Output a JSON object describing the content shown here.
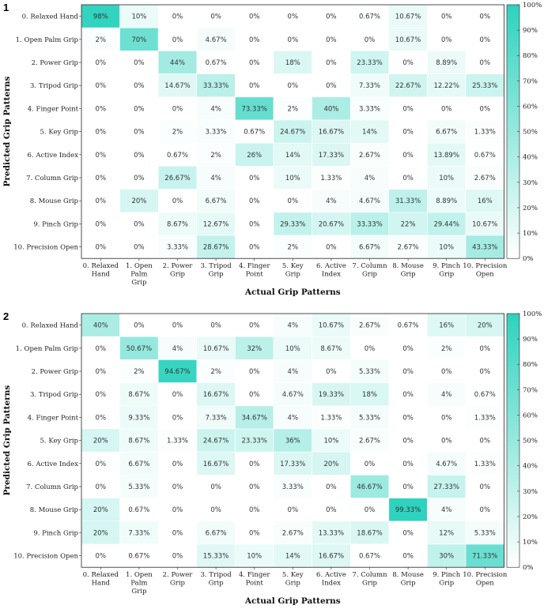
{
  "chart_data": [
    {
      "type": "heatmap",
      "panel_label": "1",
      "xlabel": "Actual Grip Patterns",
      "ylabel": "Predicted Grip Patterns",
      "row_labels": [
        "0. Relaxed Hand",
        "1. Open Palm Grip",
        "2. Power Grip",
        "3. Tripod Grip",
        "4. Finger Point",
        "5. Key Grip",
        "6. Active Index",
        "7. Column Grip",
        "8. Mouse Grip",
        "9. Pinch Grip",
        "10. Precision Open"
      ],
      "col_labels": [
        [
          "0. Relaxed",
          "Hand"
        ],
        [
          "1. Open",
          "Palm",
          "Grip"
        ],
        [
          "2. Power",
          "Grip"
        ],
        [
          "3. Tripod",
          "Grip"
        ],
        [
          "4. Finger",
          "Point"
        ],
        [
          "5. Key",
          "Grip"
        ],
        [
          "6. Active",
          "Index"
        ],
        [
          "7. Column",
          "Grip"
        ],
        [
          "8. Mouse",
          "Grip"
        ],
        [
          "9. Pinch",
          "Grip"
        ],
        [
          "10. Precision",
          "Open"
        ]
      ],
      "cell_labels": [
        [
          "98%",
          "10%",
          "0%",
          "0%",
          "0%",
          "0%",
          "0%",
          "0.67%",
          "10.67%",
          "0%",
          "0%"
        ],
        [
          "2%",
          "70%",
          "0%",
          "4.67%",
          "0%",
          "0%",
          "0%",
          "0%",
          "10.67%",
          "0%",
          "0%"
        ],
        [
          "0%",
          "0%",
          "44%",
          "0.67%",
          "0%",
          "18%",
          "0%",
          "23.33%",
          "0%",
          "8.89%",
          "0%"
        ],
        [
          "0%",
          "0%",
          "14.67%",
          "33.33%",
          "0%",
          "0%",
          "0%",
          "7.33%",
          "22.67%",
          "12.22%",
          "25.33%"
        ],
        [
          "0%",
          "0%",
          "0%",
          "4%",
          "73.33%",
          "2%",
          "40%",
          "3.33%",
          "0%",
          "0%",
          "0%"
        ],
        [
          "0%",
          "0%",
          "2%",
          "3.33%",
          "0.67%",
          "24.67%",
          "16.67%",
          "14%",
          "0%",
          "6.67%",
          "1.33%"
        ],
        [
          "0%",
          "0%",
          "0.67%",
          "2%",
          "26%",
          "14%",
          "17.33%",
          "2.67%",
          "0%",
          "13.89%",
          "0.67%"
        ],
        [
          "0%",
          "0%",
          "26.67%",
          "4%",
          "0%",
          "10%",
          "1.33%",
          "4%",
          "0%",
          "10%",
          "2.67%"
        ],
        [
          "0%",
          "20%",
          "0%",
          "6.67%",
          "0%",
          "0%",
          "4%",
          "4.67%",
          "31.33%",
          "8.89%",
          "16%"
        ],
        [
          "0%",
          "0%",
          "8.67%",
          "12.67%",
          "0%",
          "29.33%",
          "20.67%",
          "33.33%",
          "22%",
          "29.44%",
          "10.67%"
        ],
        [
          "0%",
          "0%",
          "3.33%",
          "28.67%",
          "0%",
          "2%",
          "0%",
          "6.67%",
          "2.67%",
          "10%",
          "43.33%"
        ]
      ],
      "values": [
        [
          98,
          10,
          0,
          0,
          0,
          0,
          0,
          0.67,
          10.67,
          0,
          0
        ],
        [
          2,
          70,
          0,
          4.67,
          0,
          0,
          0,
          0,
          10.67,
          0,
          0
        ],
        [
          0,
          0,
          44,
          0.67,
          0,
          18,
          0,
          23.33,
          0,
          8.89,
          0
        ],
        [
          0,
          0,
          14.67,
          33.33,
          0,
          0,
          0,
          7.33,
          22.67,
          12.22,
          25.33
        ],
        [
          0,
          0,
          0,
          4,
          73.33,
          2,
          40,
          3.33,
          0,
          0,
          0
        ],
        [
          0,
          0,
          2,
          3.33,
          0.67,
          24.67,
          16.67,
          14,
          0,
          6.67,
          1.33
        ],
        [
          0,
          0,
          0.67,
          2,
          26,
          14,
          17.33,
          2.67,
          0,
          13.89,
          0.67
        ],
        [
          0,
          0,
          26.67,
          4,
          0,
          10,
          1.33,
          4,
          0,
          10,
          2.67
        ],
        [
          0,
          20,
          0,
          6.67,
          0,
          0,
          4,
          4.67,
          31.33,
          8.89,
          16
        ],
        [
          0,
          0,
          8.67,
          12.67,
          0,
          29.33,
          20.67,
          33.33,
          22,
          29.44,
          10.67
        ],
        [
          0,
          0,
          3.33,
          28.67,
          0,
          2,
          0,
          6.67,
          2.67,
          10,
          43.33
        ]
      ],
      "colorbar_ticks": [
        "0%",
        "10%",
        "20%",
        "30%",
        "40%",
        "50%",
        "60%",
        "70%",
        "80%",
        "90%",
        "100%"
      ],
      "colorbar_range": [
        0,
        100
      ]
    },
    {
      "type": "heatmap",
      "panel_label": "2",
      "xlabel": "Actual Grip Patterns",
      "ylabel": "Predicted Grip Patterns",
      "row_labels": [
        "0. Relaxed Hand",
        "1. Open Palm Grip",
        "2. Power Grip",
        "3. Tripod Grip",
        "4. Finger Point",
        "5. Key Grip",
        "6. Active Index",
        "7. Column Grip",
        "8. Mouse Grip",
        "9. Pinch Grip",
        "10. Precision Open"
      ],
      "col_labels": [
        [
          "0. Relaxed",
          "Hand"
        ],
        [
          "1. Open",
          "Palm",
          "Grip"
        ],
        [
          "2. Power",
          "Grip"
        ],
        [
          "3. Tripod",
          "Grip"
        ],
        [
          "4. Finger",
          "Point"
        ],
        [
          "5. Key",
          "Grip"
        ],
        [
          "6. Active",
          "Index"
        ],
        [
          "7. Column",
          "Grip"
        ],
        [
          "8. Mouse",
          "Grip"
        ],
        [
          "9. Pinch",
          "Grip"
        ],
        [
          "10. Precision",
          "Open"
        ]
      ],
      "cell_labels": [
        [
          "40%",
          "0%",
          "0%",
          "0%",
          "0%",
          "4%",
          "10.67%",
          "2.67%",
          "0.67%",
          "16%",
          "20%"
        ],
        [
          "0%",
          "50.67%",
          "4%",
          "10.67%",
          "32%",
          "10%",
          "8.67%",
          "0%",
          "0%",
          "2%",
          "0%"
        ],
        [
          "0%",
          "2%",
          "94.67%",
          "2%",
          "0%",
          "4%",
          "0%",
          "5.33%",
          "0%",
          "0%",
          "0%"
        ],
        [
          "0%",
          "8.67%",
          "0%",
          "16.67%",
          "0%",
          "4.67%",
          "19.33%",
          "18%",
          "0%",
          "4%",
          "0.67%"
        ],
        [
          "0%",
          "9.33%",
          "0%",
          "7.33%",
          "34.67%",
          "4%",
          "1.33%",
          "5.33%",
          "0%",
          "0%",
          "1.33%"
        ],
        [
          "20%",
          "8.67%",
          "1.33%",
          "24.67%",
          "23.33%",
          "36%",
          "10%",
          "2.67%",
          "0%",
          "0%",
          "0%"
        ],
        [
          "0%",
          "6.67%",
          "0%",
          "16.67%",
          "0%",
          "17.33%",
          "20%",
          "0%",
          "0%",
          "4.67%",
          "1.33%"
        ],
        [
          "0%",
          "5.33%",
          "0%",
          "0%",
          "0%",
          "3.33%",
          "0%",
          "46.67%",
          "0%",
          "27.33%",
          "0%"
        ],
        [
          "20%",
          "0.67%",
          "0%",
          "0%",
          "0%",
          "0%",
          "0%",
          "0%",
          "99.33%",
          "4%",
          "0%"
        ],
        [
          "20%",
          "7.33%",
          "0%",
          "6.67%",
          "0%",
          "2.67%",
          "13.33%",
          "18.67%",
          "0%",
          "12%",
          "5.33%"
        ],
        [
          "0%",
          "0.67%",
          "0%",
          "15.33%",
          "10%",
          "14%",
          "16.67%",
          "0.67%",
          "0%",
          "30%",
          "71.33%"
        ]
      ],
      "values": [
        [
          40,
          0,
          0,
          0,
          0,
          4,
          10.67,
          2.67,
          0.67,
          16,
          20
        ],
        [
          0,
          50.67,
          4,
          10.67,
          32,
          10,
          8.67,
          0,
          0,
          2,
          0
        ],
        [
          0,
          2,
          94.67,
          2,
          0,
          4,
          0,
          5.33,
          0,
          0,
          0
        ],
        [
          0,
          8.67,
          0,
          16.67,
          0,
          4.67,
          19.33,
          18,
          0,
          4,
          0.67
        ],
        [
          0,
          9.33,
          0,
          7.33,
          34.67,
          4,
          1.33,
          5.33,
          0,
          0,
          1.33
        ],
        [
          20,
          8.67,
          1.33,
          24.67,
          23.33,
          36,
          10,
          2.67,
          0,
          0,
          0
        ],
        [
          0,
          6.67,
          0,
          16.67,
          0,
          17.33,
          20,
          0,
          0,
          4.67,
          1.33
        ],
        [
          0,
          5.33,
          0,
          0,
          0,
          3.33,
          0,
          46.67,
          0,
          27.33,
          0
        ],
        [
          20,
          0.67,
          0,
          0,
          0,
          0,
          0,
          0,
          99.33,
          4,
          0
        ],
        [
          20,
          7.33,
          0,
          6.67,
          0,
          2.67,
          13.33,
          18.67,
          0,
          12,
          5.33
        ],
        [
          0,
          0.67,
          0,
          15.33,
          10,
          14,
          16.67,
          0.67,
          0,
          30,
          71.33
        ]
      ],
      "colorbar_ticks": [
        "0%",
        "10%",
        "20%",
        "30%",
        "40%",
        "50%",
        "60%",
        "70%",
        "80%",
        "90%",
        "100%"
      ],
      "colorbar_range": [
        0,
        100
      ]
    }
  ],
  "colors": {
    "low": "#ffffff",
    "high": "#2ed2be",
    "grid": "#ffffff",
    "border": "#222222"
  }
}
